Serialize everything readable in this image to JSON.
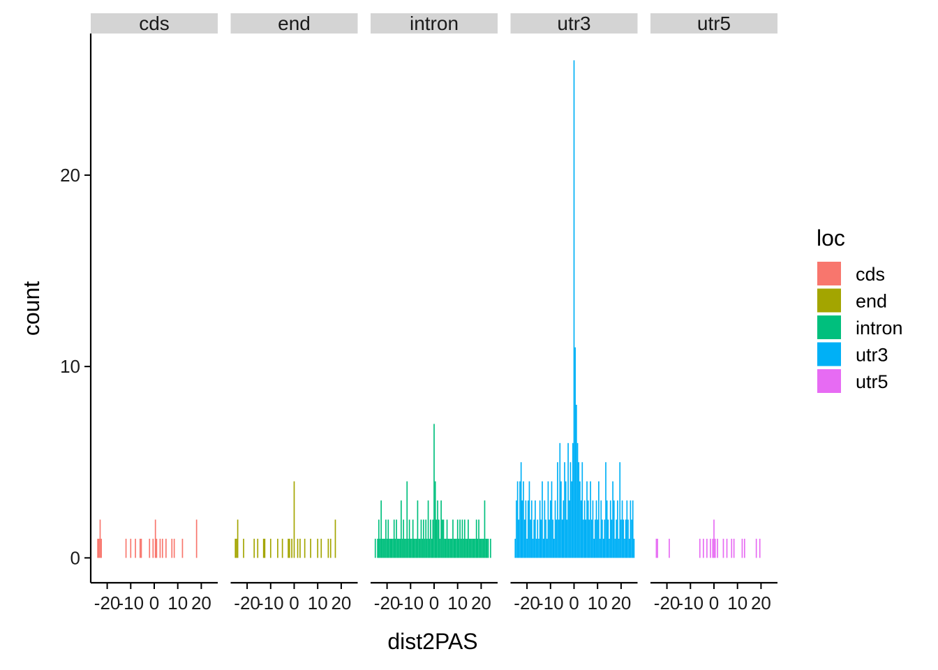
{
  "chart_data": {
    "type": "bar",
    "subtype": "faceted-histogram",
    "xlabel": "dist2PAS",
    "ylabel": "count",
    "ylim": [
      -1.3,
      27.4
    ],
    "xlim": [
      -27,
      27
    ],
    "y_ticks": [
      0,
      10,
      20
    ],
    "x_ticks": [
      -20,
      -10,
      0,
      10,
      20
    ],
    "x_tick_labels": [
      "-20",
      "-10",
      "0",
      "10",
      "20"
    ],
    "x_tick_labels_last_panel": [
      "-20",
      "-10",
      "0",
      "10",
      "20"
    ],
    "facet_var": "loc",
    "grid": false,
    "legend": {
      "title": "loc",
      "position": "right",
      "entries": [
        "cds",
        "end",
        "intron",
        "utr3",
        "utr5"
      ]
    },
    "colors": {
      "cds": "#F8766D",
      "end": "#A3A500",
      "intron": "#00BF7D",
      "utr3": "#00B0F6",
      "utr5": "#E76BF3"
    },
    "panels": [
      {
        "name": "cds",
        "label": "cds",
        "x": [
          -24,
          -23.5,
          -23,
          -22.5,
          -12,
          -10,
          -8,
          -6,
          -5.5,
          -2,
          -0.5,
          0.5,
          1,
          2.5,
          3.5,
          5,
          7.5,
          8.5,
          12,
          18
        ],
        "counts": [
          1,
          1,
          2,
          1,
          1,
          1,
          1,
          1,
          1,
          1,
          1,
          2,
          1,
          1,
          1,
          1,
          1,
          1,
          1,
          2
        ]
      },
      {
        "name": "end",
        "label": "end",
        "x": [
          -25,
          -24.5,
          -24,
          -21.5,
          -17,
          -15.5,
          -13,
          -12.5,
          -10,
          -7,
          -5,
          -2.5,
          -2,
          -1,
          0,
          1.5,
          2.5,
          4.5,
          7,
          10,
          11.5,
          14.5,
          15.5,
          17.5
        ],
        "counts": [
          1,
          1,
          2,
          1,
          1,
          1,
          1,
          1,
          1,
          1,
          1,
          1,
          1,
          1,
          4,
          1,
          1,
          1,
          1,
          1,
          1,
          1,
          1,
          2
        ]
      },
      {
        "name": "intron",
        "label": "intron",
        "x": [
          -25,
          -24,
          -23.5,
          -23,
          -22.5,
          -22,
          -21.5,
          -21,
          -20.5,
          -20,
          -19.5,
          -19,
          -18.5,
          -18,
          -17.5,
          -17,
          -16.5,
          -16,
          -15.5,
          -15,
          -14.5,
          -14,
          -13.5,
          -13,
          -12.5,
          -12,
          -11.5,
          -11,
          -10.5,
          -10,
          -9.5,
          -9,
          -8.5,
          -8,
          -7.5,
          -7,
          -6.5,
          -6,
          -5.5,
          -5,
          -4.5,
          -4,
          -3.5,
          -3,
          -2.5,
          -2,
          -1.5,
          -1,
          -0.5,
          0,
          0.5,
          1,
          1.5,
          2,
          2.5,
          3,
          3.5,
          4,
          4.5,
          5,
          5.5,
          6,
          6.5,
          7,
          7.5,
          8,
          8.5,
          9,
          9.5,
          10,
          10.5,
          11,
          11.5,
          12,
          12.5,
          13,
          13.5,
          14,
          14.5,
          15,
          15.5,
          16,
          16.5,
          17,
          17.5,
          18,
          18.5,
          19,
          19.5,
          20,
          20.5,
          21,
          21.5,
          22,
          22.5,
          23,
          24
        ],
        "counts": [
          1,
          1,
          2,
          1,
          3,
          1,
          1,
          1,
          2,
          1,
          2,
          1,
          1,
          1,
          1,
          2,
          1,
          2,
          1,
          1,
          1,
          3,
          1,
          2,
          1,
          1,
          4,
          1,
          2,
          1,
          1,
          2,
          1,
          1,
          1,
          3,
          1,
          1,
          2,
          1,
          2,
          1,
          2,
          1,
          3,
          1,
          2,
          1,
          2,
          7,
          4,
          2,
          3,
          2,
          1,
          3,
          2,
          2,
          1,
          1,
          2,
          1,
          1,
          1,
          1,
          2,
          1,
          1,
          1,
          2,
          1,
          2,
          1,
          2,
          1,
          2,
          1,
          1,
          2,
          1,
          1,
          1,
          1,
          1,
          1,
          2,
          1,
          2,
          1,
          1,
          1,
          1,
          3,
          1,
          1,
          1,
          1
        ]
      },
      {
        "name": "utr3",
        "label": "utr3",
        "x": [
          -25,
          -24.5,
          -24,
          -23.5,
          -23,
          -22.5,
          -22,
          -21.5,
          -21,
          -20.5,
          -20,
          -19.5,
          -19,
          -18.5,
          -18,
          -17.5,
          -17,
          -16.5,
          -16,
          -15.5,
          -15,
          -14.5,
          -14,
          -13.5,
          -13,
          -12.5,
          -12,
          -11.5,
          -11,
          -10.5,
          -10,
          -9.5,
          -9,
          -8.5,
          -8,
          -7.5,
          -7,
          -6.5,
          -6,
          -5.5,
          -5,
          -4.5,
          -4,
          -3.5,
          -3,
          -2.5,
          -2,
          -1.5,
          -1,
          -0.5,
          0,
          0.5,
          1,
          1.5,
          2,
          2.5,
          3,
          3.5,
          4,
          4.5,
          5,
          5.5,
          6,
          6.5,
          7,
          7.5,
          8,
          8.5,
          9,
          9.5,
          10,
          10.5,
          11,
          11.5,
          12,
          12.5,
          13,
          13.5,
          14,
          14.5,
          15,
          15.5,
          16,
          16.5,
          17,
          17.5,
          18,
          18.5,
          19,
          19.5,
          20,
          20.5,
          21,
          21.5,
          22,
          22.5,
          23,
          23.5,
          24,
          24.5,
          25,
          25.5
        ],
        "counts": [
          1,
          3,
          4,
          2,
          4,
          5,
          3,
          4,
          2,
          3,
          1,
          3,
          4,
          2,
          3,
          1,
          2,
          3,
          1,
          2,
          1,
          3,
          2,
          4,
          1,
          3,
          2,
          1,
          4,
          2,
          3,
          4,
          2,
          1,
          3,
          2,
          5,
          2,
          6,
          4,
          2,
          3,
          5,
          4,
          2,
          6,
          3,
          5,
          4,
          6,
          26,
          11,
          8,
          6,
          5,
          4,
          3,
          5,
          2,
          3,
          2,
          4,
          3,
          2,
          4,
          2,
          3,
          1,
          2,
          3,
          2,
          4,
          1,
          3,
          2,
          1,
          2,
          5,
          3,
          2,
          1,
          3,
          2,
          4,
          3,
          1,
          2,
          3,
          1,
          5,
          2,
          3,
          2,
          1,
          2,
          3,
          2,
          1,
          3,
          2,
          3,
          1
        ]
      },
      {
        "name": "utr5",
        "label": "utr5",
        "x": [
          -24.5,
          -24,
          -19,
          -6,
          -4.5,
          -3,
          -1.5,
          -0.5,
          0,
          0.5,
          1.5,
          4,
          5.5,
          7.5,
          8.5,
          12,
          13,
          18,
          19.5
        ],
        "counts": [
          1,
          1,
          1,
          1,
          1,
          1,
          1,
          1,
          2,
          1,
          1,
          1,
          1,
          1,
          1,
          1,
          1,
          1,
          1
        ]
      }
    ]
  }
}
